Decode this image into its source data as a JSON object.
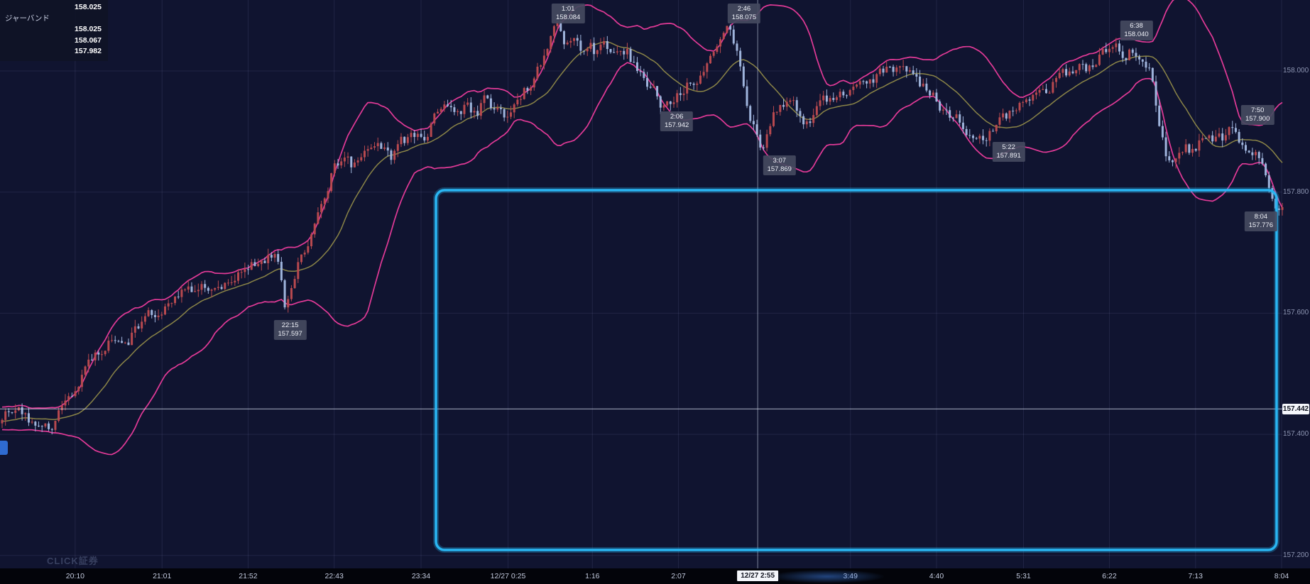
{
  "app": {
    "watermark": "CLICK証券"
  },
  "indicator_panel": {
    "rows": [
      {
        "label": "",
        "value": "158.025"
      },
      {
        "label": "ジャーバンド",
        "value": ""
      },
      {
        "label": "",
        "value": "158.025"
      },
      {
        "label": "",
        "value": "158.067"
      },
      {
        "label": "",
        "value": "157.982"
      }
    ]
  },
  "axes": {
    "price_ticks": [
      {
        "label": "158.000",
        "price": 158.0
      },
      {
        "label": "157.800",
        "price": 157.8
      },
      {
        "label": "157.600",
        "price": 157.6
      },
      {
        "label": "157.400",
        "price": 157.4
      },
      {
        "label": "157.200",
        "price": 157.2
      }
    ],
    "time_ticks": [
      {
        "label": "20:10",
        "xf": 0.0574
      },
      {
        "label": "21:01",
        "xf": 0.1237
      },
      {
        "label": "21:52",
        "xf": 0.1894
      },
      {
        "label": "22:43",
        "xf": 0.2551
      },
      {
        "label": "23:34",
        "xf": 0.3214
      },
      {
        "label": "12/27 0:25",
        "xf": 0.3878
      },
      {
        "label": "1:16",
        "xf": 0.4522
      },
      {
        "label": "2:07",
        "xf": 0.5179
      },
      {
        "label": "3:49",
        "xf": 0.6492
      },
      {
        "label": "4:40",
        "xf": 0.7149
      },
      {
        "label": "5:31",
        "xf": 0.7813
      },
      {
        "label": "6:22",
        "xf": 0.8469
      },
      {
        "label": "7:13",
        "xf": 0.9126
      },
      {
        "label": "8:04",
        "xf": 0.9783
      }
    ]
  },
  "crosshair": {
    "time_label": "12/27 2:55",
    "price_label": "157.442",
    "xf": 0.5784,
    "price": 157.442
  },
  "selection_box": {
    "x1f": 0.3328,
    "y1f": 0.3257,
    "x2f": 0.9745,
    "y2f": 0.9417,
    "color": "#29b5f2"
  },
  "annotations": [
    {
      "time": "22:15",
      "price": "157.597",
      "xf": 0.2215,
      "kind": "low"
    },
    {
      "time": "1:01",
      "price": "158.084",
      "xf": 0.4337,
      "kind": "high"
    },
    {
      "time": "2:06",
      "price": "157.942",
      "xf": 0.5166,
      "kind": "low"
    },
    {
      "time": "2:46",
      "price": "158.075",
      "xf": 0.568,
      "kind": "high"
    },
    {
      "time": "3:07",
      "price": "157.869",
      "xf": 0.595,
      "kind": "low"
    },
    {
      "time": "5:22",
      "price": "157.891",
      "xf": 0.77,
      "kind": "low"
    },
    {
      "time": "6:38",
      "price": "158.040",
      "xf": 0.8675,
      "kind": "high"
    },
    {
      "time": "7:50",
      "price": "157.900",
      "xf": 0.96,
      "kind": "high"
    },
    {
      "time": "8:04",
      "price": "157.776",
      "xf": 0.9625,
      "kind": "low"
    }
  ],
  "chart_data": {
    "type": "candlestick",
    "title": "",
    "x_labels": [
      "20:10",
      "21:01",
      "21:52",
      "22:43",
      "23:34",
      "12/27 0:25",
      "1:16",
      "2:07",
      "3:49",
      "4:40",
      "5:31",
      "6:22",
      "7:13",
      "8:04"
    ],
    "y_labels": [
      "158.000",
      "157.800",
      "157.600",
      "157.400",
      "157.200"
    ],
    "y_range": [
      157.15,
      158.12
    ],
    "background": "#101430",
    "grid": true,
    "candle_colors": {
      "up": "#b8494f",
      "down": "#9fb4dc"
    },
    "overlays": {
      "bollinger_band": {
        "window": 26,
        "k": 2.05,
        "color": "#e23a97"
      },
      "moving_average": {
        "window": 18,
        "color": "#8a8447"
      }
    },
    "price_anchors": [
      [
        0.0,
        157.43
      ],
      [
        0.008,
        157.448
      ],
      [
        0.018,
        157.432
      ],
      [
        0.03,
        157.412
      ],
      [
        0.04,
        157.42
      ],
      [
        0.048,
        157.442
      ],
      [
        0.057,
        157.455
      ],
      [
        0.064,
        157.5
      ],
      [
        0.072,
        157.53
      ],
      [
        0.082,
        157.552
      ],
      [
        0.092,
        157.56
      ],
      [
        0.1,
        157.562
      ],
      [
        0.108,
        157.585
      ],
      [
        0.116,
        157.6
      ],
      [
        0.124,
        157.612
      ],
      [
        0.134,
        157.628
      ],
      [
        0.146,
        157.638
      ],
      [
        0.158,
        157.648
      ],
      [
        0.17,
        157.65
      ],
      [
        0.18,
        157.658
      ],
      [
        0.189,
        157.668
      ],
      [
        0.198,
        157.68
      ],
      [
        0.208,
        157.695
      ],
      [
        0.214,
        157.692
      ],
      [
        0.2185,
        157.64
      ],
      [
        0.2215,
        157.6
      ],
      [
        0.2255,
        157.64
      ],
      [
        0.231,
        157.678
      ],
      [
        0.237,
        157.7
      ],
      [
        0.243,
        157.748
      ],
      [
        0.249,
        157.79
      ],
      [
        0.2551,
        157.82
      ],
      [
        0.261,
        157.848
      ],
      [
        0.268,
        157.858
      ],
      [
        0.274,
        157.838
      ],
      [
        0.28,
        157.862
      ],
      [
        0.288,
        157.875
      ],
      [
        0.296,
        157.868
      ],
      [
        0.304,
        157.856
      ],
      [
        0.312,
        157.878
      ],
      [
        0.3214,
        157.888
      ],
      [
        0.33,
        157.892
      ],
      [
        0.338,
        157.93
      ],
      [
        0.346,
        157.95
      ],
      [
        0.354,
        157.938
      ],
      [
        0.362,
        157.942
      ],
      [
        0.37,
        157.932
      ],
      [
        0.378,
        157.952
      ],
      [
        0.3878,
        157.93
      ],
      [
        0.394,
        157.918
      ],
      [
        0.4,
        157.942
      ],
      [
        0.408,
        157.965
      ],
      [
        0.416,
        157.988
      ],
      [
        0.424,
        158.03
      ],
      [
        0.4337,
        158.084
      ],
      [
        0.44,
        158.05
      ],
      [
        0.447,
        158.06
      ],
      [
        0.4522,
        158.04
      ],
      [
        0.458,
        158.052
      ],
      [
        0.464,
        158.03
      ],
      [
        0.472,
        158.038
      ],
      [
        0.48,
        158.02
      ],
      [
        0.488,
        158.028
      ],
      [
        0.496,
        158.005
      ],
      [
        0.504,
        157.985
      ],
      [
        0.51,
        157.972
      ],
      [
        0.5166,
        157.942
      ],
      [
        0.524,
        157.958
      ],
      [
        0.532,
        157.972
      ],
      [
        0.54,
        157.988
      ],
      [
        0.548,
        157.995
      ],
      [
        0.556,
        158.02
      ],
      [
        0.562,
        158.048
      ],
      [
        0.568,
        158.075
      ],
      [
        0.574,
        158.03
      ],
      [
        0.58,
        157.96
      ],
      [
        0.588,
        157.905
      ],
      [
        0.595,
        157.869
      ],
      [
        0.602,
        157.92
      ],
      [
        0.608,
        157.952
      ],
      [
        0.615,
        157.958
      ],
      [
        0.622,
        157.93
      ],
      [
        0.63,
        157.912
      ],
      [
        0.638,
        157.935
      ],
      [
        0.6492,
        157.958
      ],
      [
        0.658,
        157.968
      ],
      [
        0.668,
        157.975
      ],
      [
        0.678,
        157.988
      ],
      [
        0.688,
        157.995
      ],
      [
        0.698,
        158.0
      ],
      [
        0.7149,
        157.985
      ],
      [
        0.724,
        157.962
      ],
      [
        0.734,
        157.94
      ],
      [
        0.744,
        157.922
      ],
      [
        0.754,
        157.905
      ],
      [
        0.762,
        157.898
      ],
      [
        0.77,
        157.891
      ],
      [
        0.778,
        157.912
      ],
      [
        0.7813,
        157.92
      ],
      [
        0.79,
        157.932
      ],
      [
        0.8,
        157.95
      ],
      [
        0.81,
        157.962
      ],
      [
        0.82,
        157.975
      ],
      [
        0.83,
        157.99
      ],
      [
        0.8469,
        158.005
      ],
      [
        0.856,
        158.022
      ],
      [
        0.8675,
        158.04
      ],
      [
        0.876,
        158.03
      ],
      [
        0.884,
        158.035
      ],
      [
        0.89,
        158.02
      ],
      [
        0.896,
        158.0
      ],
      [
        0.902,
        157.94
      ],
      [
        0.908,
        157.87
      ],
      [
        0.9126,
        157.848
      ],
      [
        0.918,
        157.862
      ],
      [
        0.924,
        157.88
      ],
      [
        0.93,
        157.87
      ],
      [
        0.936,
        157.888
      ],
      [
        0.942,
        157.895
      ],
      [
        0.948,
        157.89
      ],
      [
        0.954,
        157.882
      ],
      [
        0.96,
        157.9
      ],
      [
        0.966,
        157.886
      ],
      [
        0.972,
        157.878
      ],
      [
        0.9783,
        157.872
      ],
      [
        0.984,
        157.86
      ],
      [
        0.99,
        157.8
      ],
      [
        0.996,
        157.776
      ],
      [
        1.0,
        157.79
      ]
    ]
  }
}
